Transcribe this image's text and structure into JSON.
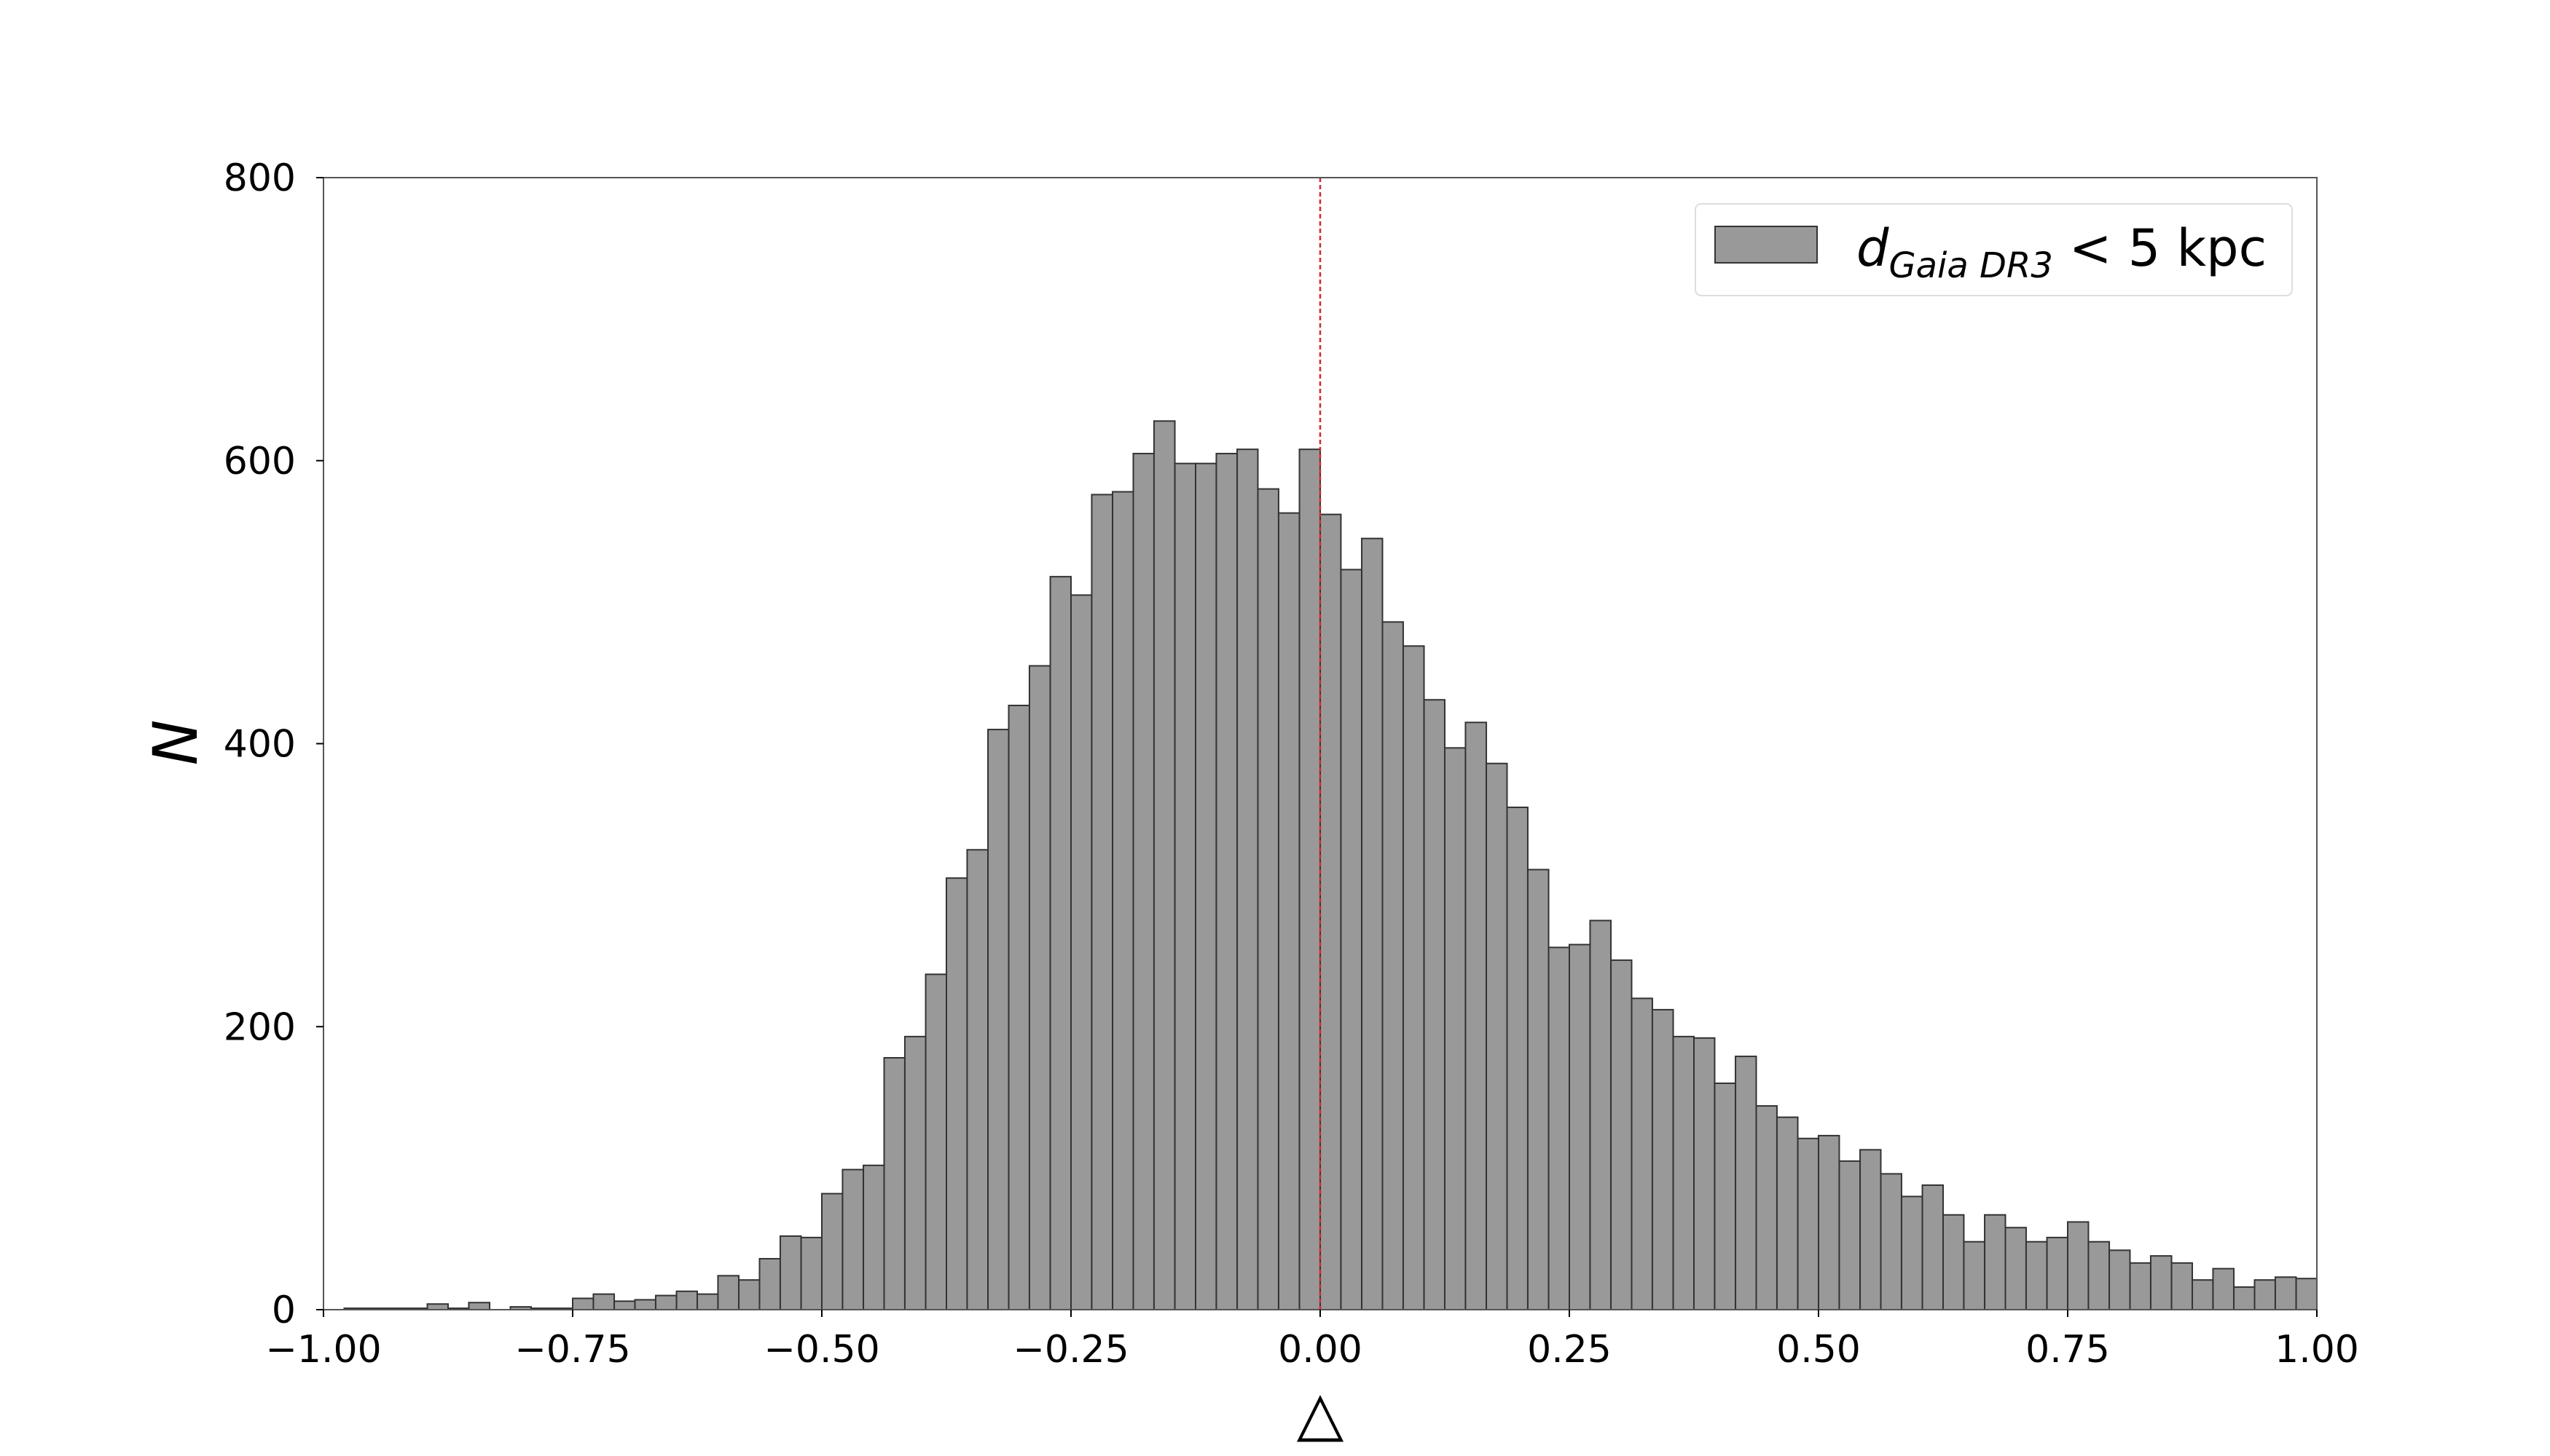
{
  "chart_data": {
    "type": "histogram",
    "xlabel": "△",
    "ylabel": "N",
    "legend": {
      "main": "d",
      "sub": "Gaia DR3",
      "rest": "< 5 kpc"
    },
    "legend_position": "upper right",
    "color": "#999999",
    "edgecolor": "#333333",
    "vline": {
      "x": 0,
      "color": "#d62728"
    },
    "bins": [
      -1,
      -0.9792,
      -0.9583,
      -0.9375,
      -0.9167,
      -0.8958,
      -0.875,
      -0.8542,
      -0.8333,
      -0.8125,
      -0.7917,
      -0.7708,
      -0.75,
      -0.7292,
      -0.7083,
      -0.6875,
      -0.6667,
      -0.6458,
      -0.625,
      -0.6042,
      -0.5833,
      -0.5625,
      -0.5417,
      -0.5208,
      -0.5,
      -0.4792,
      -0.4583,
      -0.4375,
      -0.4167,
      -0.3958,
      -0.375,
      -0.3542,
      -0.3333,
      -0.3125,
      -0.2917,
      -0.2708,
      -0.25,
      -0.2292,
      -0.2083,
      -0.1875,
      -0.1667,
      -0.1458,
      -0.125,
      -0.1042,
      -0.0833,
      -0.0625,
      -0.0417,
      -0.0208,
      0,
      0.0208,
      0.0417,
      0.0625,
      0.0833,
      0.1042,
      0.125,
      0.1458,
      0.1667,
      0.1875,
      0.2083,
      0.2292,
      0.25,
      0.2708,
      0.2917,
      0.3125,
      0.3333,
      0.3542,
      0.375,
      0.3958,
      0.4167,
      0.4375,
      0.4583,
      0.4792,
      0.5,
      0.5208,
      0.5417,
      0.5625,
      0.5833,
      0.6042,
      0.625,
      0.6458,
      0.6667,
      0.6875,
      0.7083,
      0.7292,
      0.75,
      0.7708,
      0.7917,
      0.8125,
      0.8333,
      0.8542,
      0.875,
      0.8958,
      0.9167,
      0.9375,
      0.9583,
      0.9792,
      1
    ],
    "values": [
      0,
      1,
      1,
      1,
      1,
      4,
      1,
      5,
      0,
      2,
      1,
      1,
      8,
      11,
      6,
      7,
      10,
      13,
      11,
      24,
      21,
      36,
      52,
      51,
      82,
      99,
      102,
      178,
      193,
      237,
      305,
      325,
      410,
      427,
      455,
      518,
      505,
      576,
      578,
      605,
      628,
      598,
      598,
      605,
      608,
      580,
      563,
      608,
      562,
      523,
      545,
      486,
      469,
      431,
      397,
      415,
      386,
      355,
      311,
      256,
      258,
      275,
      247,
      220,
      212,
      193,
      192,
      160,
      179,
      144,
      136,
      121,
      123,
      105,
      113,
      96,
      80,
      88,
      67,
      48,
      67,
      58,
      48,
      51,
      62,
      48,
      42,
      33,
      38,
      33,
      21,
      29,
      16,
      21,
      23,
      22
    ],
    "xlim": [
      -1,
      1
    ],
    "ylim": [
      0,
      800
    ],
    "xticks": [
      {
        "value": -1,
        "label": "−1.00"
      },
      {
        "value": -0.75,
        "label": "−0.75"
      },
      {
        "value": -0.5,
        "label": "−0.50"
      },
      {
        "value": -0.25,
        "label": "−0.25"
      },
      {
        "value": 0,
        "label": "0.00"
      },
      {
        "value": 0.25,
        "label": "0.25"
      },
      {
        "value": 0.5,
        "label": "0.50"
      },
      {
        "value": 0.75,
        "label": "0.75"
      },
      {
        "value": 1,
        "label": "1.00"
      }
    ],
    "yticks": [
      0,
      200,
      400,
      600,
      800
    ]
  }
}
